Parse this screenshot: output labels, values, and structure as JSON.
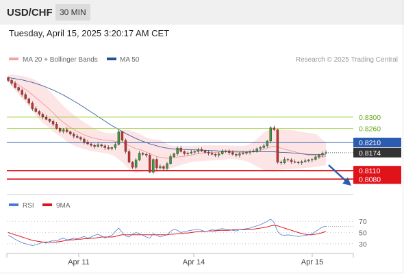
{
  "header": {
    "pair": "USD/CHF",
    "timeframe": "30 MIN"
  },
  "timestamp": "Tuesday, April 15, 2025 3:20:17 AM CET",
  "chart_data": {
    "type": "candlestick",
    "colors": {
      "up": "#3c9a3a",
      "down": "#c9302c",
      "bollinger_band": "#fde0e0",
      "ma20": "#f09696",
      "ma50": "#3a5f9f",
      "resistance": "#9acd32",
      "support": "#e0131a",
      "pivot": "#2a5db0",
      "forecast_arrow": "#2a5db0",
      "rsi": "#4a7bd0",
      "rsi_ma": "#e0131a"
    },
    "legend": [
      {
        "label": "MA 20 + Bollinger Bands",
        "color": "#f4a3a3"
      },
      {
        "label": "MA 50",
        "color": "#2a4f8f"
      }
    ],
    "watermark": "Research © 2025 Trading Central",
    "price_axis": {
      "min": 0.804,
      "max": 0.8465
    },
    "levels": [
      {
        "label": "0.8300",
        "value": 0.83,
        "kind": "resistance"
      },
      {
        "label": "0.8260",
        "value": 0.826,
        "kind": "resistance"
      },
      {
        "label": "0.8210",
        "value": 0.821,
        "kind": "pivot"
      },
      {
        "label": "0.8110",
        "value": 0.811,
        "kind": "support"
      },
      {
        "label": "0.8080",
        "value": 0.808,
        "kind": "support"
      }
    ],
    "last_price": {
      "label": "0.8174",
      "value": 0.8174
    },
    "x_labels": [
      "Apr 11",
      "Apr 14",
      "Apr 15"
    ],
    "close": [
      0.843,
      0.842,
      0.8405,
      0.8395,
      0.838,
      0.8365,
      0.835,
      0.833,
      0.832,
      0.831,
      0.83,
      0.8292,
      0.8285,
      0.8275,
      0.826,
      0.825,
      0.8255,
      0.8248,
      0.824,
      0.8232,
      0.8228,
      0.8222,
      0.8212,
      0.8205,
      0.82,
      0.8196,
      0.8202,
      0.8198,
      0.8192,
      0.8188,
      0.8192,
      0.8203,
      0.8248,
      0.8218,
      0.8178,
      0.814,
      0.8122,
      0.8148,
      0.8172,
      0.8168,
      0.8165,
      0.8105,
      0.815,
      0.812,
      0.8125,
      0.8118,
      0.8135,
      0.816,
      0.817,
      0.819,
      0.8178,
      0.817,
      0.8172,
      0.8176,
      0.8178,
      0.8185,
      0.818,
      0.8175,
      0.8172,
      0.8168,
      0.8165,
      0.817,
      0.8178,
      0.818,
      0.8174,
      0.8168,
      0.8165,
      0.817,
      0.8172,
      0.8175,
      0.8178,
      0.818,
      0.8188,
      0.8192,
      0.8198,
      0.8215,
      0.8262,
      0.8255,
      0.814,
      0.8138,
      0.815,
      0.8148,
      0.8142,
      0.814,
      0.8138,
      0.8142,
      0.8145,
      0.8148,
      0.815,
      0.8158,
      0.8166,
      0.8172,
      0.8174
    ],
    "ma20": [
      0.843,
      0.8426,
      0.842,
      0.8414,
      0.8406,
      0.8398,
      0.8389,
      0.8379,
      0.8369,
      0.8359,
      0.8348,
      0.8338,
      0.8327,
      0.8315,
      0.8303,
      0.8291,
      0.8281,
      0.8272,
      0.8263,
      0.8256,
      0.8249,
      0.8243,
      0.8237,
      0.8232,
      0.8228,
      0.8225,
      0.8222,
      0.822,
      0.8219,
      0.8218,
      0.8216,
      0.8214,
      0.8213,
      0.821,
      0.8205,
      0.8199,
      0.8193,
      0.8188,
      0.8185,
      0.8181,
      0.8176,
      0.817,
      0.8165,
      0.816,
      0.8158,
      0.8155,
      0.8154,
      0.8155,
      0.8156,
      0.8158,
      0.816,
      0.8161,
      0.8163,
      0.8165,
      0.8168,
      0.8171,
      0.8172,
      0.8174,
      0.8175,
      0.8175,
      0.8175,
      0.8176,
      0.8177,
      0.8177,
      0.8177,
      0.8176,
      0.8176,
      0.8175,
      0.8175,
      0.8175,
      0.8176,
      0.8178,
      0.818,
      0.8183,
      0.8186,
      0.819,
      0.8194,
      0.8197,
      0.8194,
      0.819,
      0.8186,
      0.8183,
      0.818,
      0.8177,
      0.8173,
      0.817,
      0.8168,
      0.8165,
      0.8163,
      0.8161,
      0.816,
      0.8159,
      0.816
    ],
    "ma50": [
      0.844,
      0.8438,
      0.8436,
      0.8434,
      0.8432,
      0.8429,
      0.8426,
      0.8423,
      0.8419,
      0.8415,
      0.8411,
      0.8406,
      0.8401,
      0.8396,
      0.839,
      0.8384,
      0.8378,
      0.8371,
      0.8364,
      0.8357,
      0.835,
      0.8342,
      0.8334,
      0.8326,
      0.8318,
      0.831,
      0.8302,
      0.8294,
      0.8286,
      0.8278,
      0.827,
      0.8263,
      0.8256,
      0.8249,
      0.8242,
      0.8236,
      0.823,
      0.8224,
      0.8219,
      0.8214,
      0.821,
      0.8205,
      0.8202,
      0.8198,
      0.8195,
      0.8192,
      0.819,
      0.8188,
      0.8187,
      0.8186,
      0.8186,
      0.8185,
      0.8185,
      0.8184,
      0.8184,
      0.8183,
      0.8183,
      0.8182,
      0.8182,
      0.8181,
      0.8181,
      0.818,
      0.818,
      0.818,
      0.818,
      0.8179,
      0.8179,
      0.8178,
      0.8178,
      0.8178,
      0.8177,
      0.8177,
      0.8177,
      0.8177,
      0.8177,
      0.8177,
      0.8177,
      0.8177,
      0.8176,
      0.8175,
      0.8175,
      0.8174,
      0.8173,
      0.8172,
      0.8171,
      0.817,
      0.8169,
      0.8168,
      0.8168,
      0.8167,
      0.8167,
      0.8167,
      0.8166
    ],
    "bb_upper": [
      0.845,
      0.8452,
      0.845,
      0.8448,
      0.8446,
      0.8443,
      0.844,
      0.8436,
      0.843,
      0.8422,
      0.8413,
      0.8402,
      0.8392,
      0.838,
      0.8366,
      0.8352,
      0.834,
      0.8328,
      0.8318,
      0.8308,
      0.8299,
      0.829,
      0.8282,
      0.8274,
      0.8266,
      0.826,
      0.8254,
      0.8249,
      0.8245,
      0.8243,
      0.8242,
      0.8243,
      0.825,
      0.8255,
      0.8256,
      0.8254,
      0.825,
      0.8246,
      0.824,
      0.8234,
      0.8228,
      0.8224,
      0.8221,
      0.822,
      0.8218,
      0.8212,
      0.8205,
      0.82,
      0.8198,
      0.8198,
      0.8198,
      0.8198,
      0.8198,
      0.8198,
      0.8198,
      0.8199,
      0.8199,
      0.82,
      0.82,
      0.82,
      0.82,
      0.82,
      0.82,
      0.82,
      0.8199,
      0.8199,
      0.8198,
      0.8198,
      0.8198,
      0.82,
      0.8205,
      0.8212,
      0.8222,
      0.8234,
      0.8245,
      0.8252,
      0.8256,
      0.8258,
      0.8258,
      0.8257,
      0.8256,
      0.8255,
      0.8254,
      0.8252,
      0.825,
      0.8248,
      0.8246,
      0.8244,
      0.8242,
      0.824,
      0.8232,
      0.822,
      0.821
    ],
    "bb_lower": [
      0.8425,
      0.841,
      0.8395,
      0.838,
      0.8366,
      0.8352,
      0.8338,
      0.8322,
      0.8306,
      0.8292,
      0.828,
      0.827,
      0.826,
      0.8249,
      0.824,
      0.8232,
      0.8223,
      0.8214,
      0.8206,
      0.82,
      0.8194,
      0.819,
      0.8186,
      0.8183,
      0.818,
      0.8178,
      0.8176,
      0.8174,
      0.8172,
      0.817,
      0.8166,
      0.816,
      0.815,
      0.814,
      0.8128,
      0.8115,
      0.8105,
      0.8102,
      0.8104,
      0.8106,
      0.8108,
      0.8104,
      0.8102,
      0.8104,
      0.8108,
      0.811,
      0.8114,
      0.8118,
      0.8122,
      0.8126,
      0.813,
      0.8134,
      0.8137,
      0.814,
      0.8142,
      0.8143,
      0.8144,
      0.8145,
      0.8146,
      0.8146,
      0.8147,
      0.8148,
      0.8149,
      0.815,
      0.8152,
      0.8151,
      0.815,
      0.8148,
      0.8146,
      0.8143,
      0.8138,
      0.8132,
      0.8125,
      0.8118,
      0.8113,
      0.811,
      0.811,
      0.8112,
      0.8114,
      0.8114,
      0.8115,
      0.8115,
      0.8116,
      0.8117,
      0.8118,
      0.8119,
      0.812,
      0.8121,
      0.8122,
      0.8123,
      0.8125,
      0.8128,
      0.813
    ],
    "rsi_panel": {
      "legend": [
        {
          "label": "RSI",
          "color": "#4a7bd0"
        },
        {
          "label": "9MA",
          "color": "#e0131a"
        }
      ],
      "levels": [
        {
          "label": "70",
          "value": 70
        },
        {
          "label": "50",
          "value": 50
        },
        {
          "label": "30",
          "value": 30
        }
      ],
      "range": [
        20,
        80
      ],
      "rsi": [
        45,
        42,
        38,
        35,
        32,
        30,
        28,
        27,
        28,
        30,
        33,
        31,
        34,
        36,
        35,
        38,
        40,
        37,
        38,
        40,
        39,
        41,
        43,
        40,
        42,
        45,
        47,
        44,
        40,
        43,
        45,
        52,
        58,
        50,
        44,
        42,
        47,
        50,
        48,
        45,
        42,
        40,
        48,
        45,
        42,
        44,
        46,
        52,
        56,
        54,
        50,
        52,
        53,
        54,
        55,
        56,
        54,
        52,
        53,
        55,
        54,
        56,
        57,
        56,
        55,
        54,
        53,
        55,
        56,
        57,
        58,
        60,
        62,
        64,
        67,
        70,
        74,
        68,
        52,
        46,
        45,
        46,
        45,
        44,
        43,
        44,
        45,
        46,
        48,
        52,
        56,
        60,
        61
      ],
      "rsi_ma": [
        50,
        48,
        46,
        44,
        42,
        40,
        38,
        36,
        35,
        34,
        33,
        33,
        33,
        33,
        33,
        34,
        35,
        36,
        37,
        37,
        38,
        38,
        39,
        39,
        40,
        40,
        41,
        42,
        42,
        42,
        42,
        43,
        45,
        46,
        46,
        46,
        46,
        46,
        46,
        46,
        46,
        46,
        46,
        46,
        46,
        46,
        46,
        47,
        47,
        48,
        48,
        49,
        49,
        50,
        51,
        52,
        52,
        52,
        53,
        53,
        53,
        54,
        54,
        54,
        54,
        55,
        55,
        55,
        55,
        55,
        56,
        56,
        57,
        58,
        59,
        60,
        62,
        63,
        62,
        60,
        58,
        56,
        54,
        52,
        50,
        48,
        47,
        46,
        46,
        47,
        48,
        50,
        52
      ]
    }
  }
}
